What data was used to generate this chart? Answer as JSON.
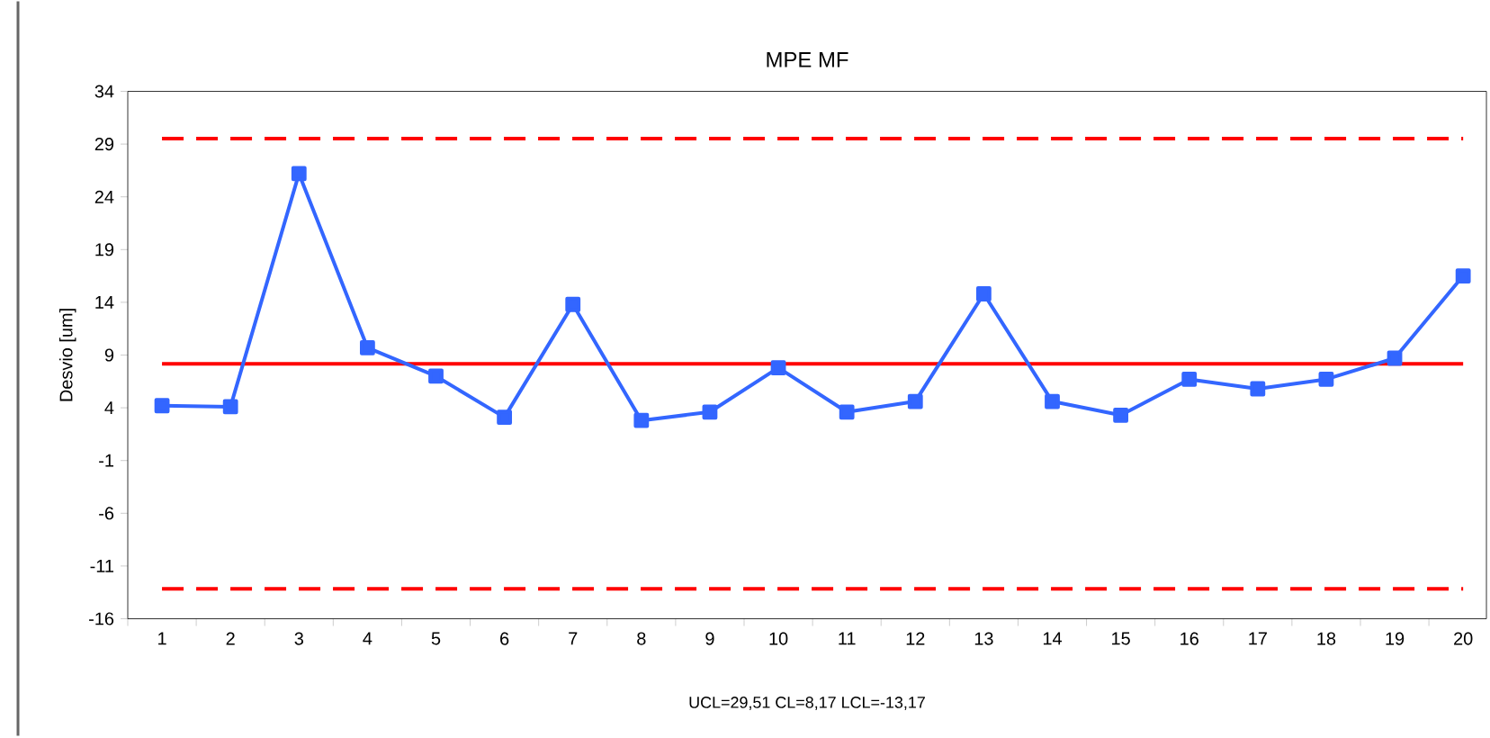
{
  "chart_data": {
    "type": "line",
    "title": "MPE MF",
    "ylabel": "Desvio [um]",
    "categories": [
      "1",
      "2",
      "3",
      "4",
      "5",
      "6",
      "7",
      "8",
      "9",
      "10",
      "11",
      "12",
      "13",
      "14",
      "15",
      "16",
      "17",
      "18",
      "19",
      "20"
    ],
    "series": [
      {
        "color": "#3366ff",
        "values": [
          4.2,
          4.1,
          26.2,
          9.7,
          7.0,
          3.1,
          13.8,
          2.8,
          3.6,
          7.8,
          3.6,
          4.6,
          14.8,
          4.6,
          3.3,
          6.7,
          5.8,
          6.7,
          8.7,
          16.5
        ]
      }
    ],
    "ylim": [
      -16,
      34
    ],
    "yticks": [
      -16,
      -11,
      -6,
      -1,
      4,
      9,
      14,
      19,
      24,
      29,
      34
    ],
    "ref_lines": [
      {
        "axis": "y",
        "value": 29.51,
        "color": "#ff0000",
        "line_style": "dashed"
      },
      {
        "axis": "y",
        "value": 8.17,
        "color": "#ff0000",
        "line_style": "solid"
      },
      {
        "axis": "y",
        "value": -13.17,
        "color": "#ff0000",
        "line_style": "dashed"
      }
    ],
    "annotations": [
      "UCL=29,51  CL=8,17  LCL=-13,17"
    ],
    "marker": "square",
    "line_style": "solid"
  }
}
